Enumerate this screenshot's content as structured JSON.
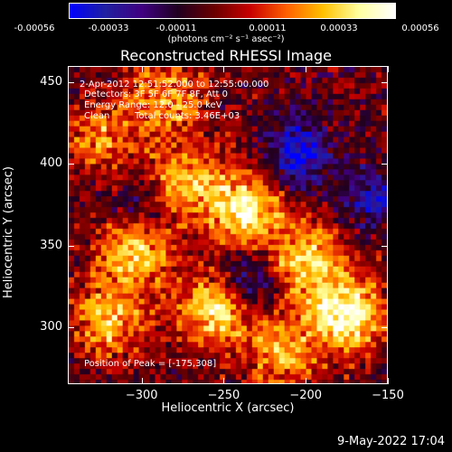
{
  "colorbar": {
    "tick_labels": [
      "-0.00056",
      "-0.00033",
      "-0.00011",
      "0.00011",
      "0.00033",
      "0.00056"
    ],
    "units": "(photons cm⁻² s⁻¹ asec⁻²)",
    "gradient_stops": [
      "#0000ff",
      "#2020a0",
      "#400080",
      "#200020",
      "#6a0000",
      "#c80000",
      "#ff6000",
      "#ffc000",
      "#ffffa0",
      "#ffffff"
    ]
  },
  "chart_data": {
    "type": "heatmap",
    "title": "Reconstructed RHESSI Image",
    "xlabel": "Heliocentric X (arcsec)",
    "ylabel": "Heliocentric Y (arcsec)",
    "xlim": [
      -345,
      -150
    ],
    "ylim": [
      265,
      460
    ],
    "xticks": [
      -300,
      -250,
      -200,
      -150
    ],
    "yticks": [
      300,
      350,
      400,
      450
    ],
    "value_range": [
      -0.00056,
      0.00056
    ],
    "peak": [
      -175,
      308
    ],
    "bright_sources": [
      {
        "x": -275,
        "y": 390,
        "strength": 0.7
      },
      {
        "x": -238,
        "y": 372,
        "strength": 0.9
      },
      {
        "x": -305,
        "y": 348,
        "strength": 0.8
      },
      {
        "x": -255,
        "y": 312,
        "strength": 0.85
      },
      {
        "x": -200,
        "y": 342,
        "strength": 0.8
      },
      {
        "x": -175,
        "y": 308,
        "strength": 1.0
      },
      {
        "x": -320,
        "y": 305,
        "strength": 0.7
      },
      {
        "x": -215,
        "y": 285,
        "strength": 0.6
      },
      {
        "x": -325,
        "y": 415,
        "strength": 0.5
      },
      {
        "x": -285,
        "y": 440,
        "strength": 0.6
      }
    ],
    "dark_sources": [
      {
        "x": -205,
        "y": 408,
        "strength": 0.9
      },
      {
        "x": -235,
        "y": 330,
        "strength": 0.7
      },
      {
        "x": -300,
        "y": 375,
        "strength": 0.5
      },
      {
        "x": -160,
        "y": 380,
        "strength": 0.6
      }
    ]
  },
  "annotations": {
    "time_range": "2-Apr-2012 12:51:52.000 to 12:55:00.000",
    "detectors": "Detectors: 3F 5F 6F 7F 8F, Att 0",
    "energy_range": "Energy Range: 12.0 - 25.0 keV",
    "clean": "Clean",
    "total_counts": "Total counts: 3.46E+03",
    "peak_position": "Position of Peak = [-175,308]"
  },
  "timestamp": "9-May-2022 17:04"
}
